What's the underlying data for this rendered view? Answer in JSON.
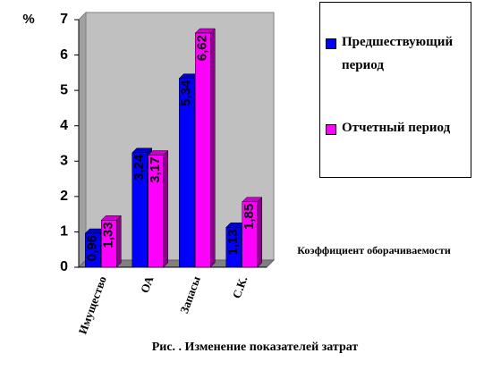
{
  "chart_data": {
    "type": "bar3d",
    "y_label": "%",
    "x_label": "Коэффициент оборачиваемости",
    "caption": "Рис. . Изменение показателей затрат",
    "categories": [
      "Имущество",
      "ОА",
      "Запасы",
      "С.К."
    ],
    "series": [
      {
        "name": "Предшествующий период",
        "color": "#0000ff",
        "values": [
          0.96,
          3.24,
          5.34,
          1.13
        ],
        "value_labels": [
          "0,96",
          "3,24",
          "5,34",
          "1,13"
        ]
      },
      {
        "name": "Отчетный период",
        "color": "#ff00ff",
        "values": [
          1.33,
          3.17,
          6.62,
          1.85
        ],
        "value_labels": [
          "1,33",
          "3,17",
          "6,62",
          "1,85"
        ]
      }
    ],
    "ylim": [
      0,
      7
    ],
    "yticks": [
      0,
      1,
      2,
      3,
      4,
      5,
      6,
      7
    ]
  }
}
